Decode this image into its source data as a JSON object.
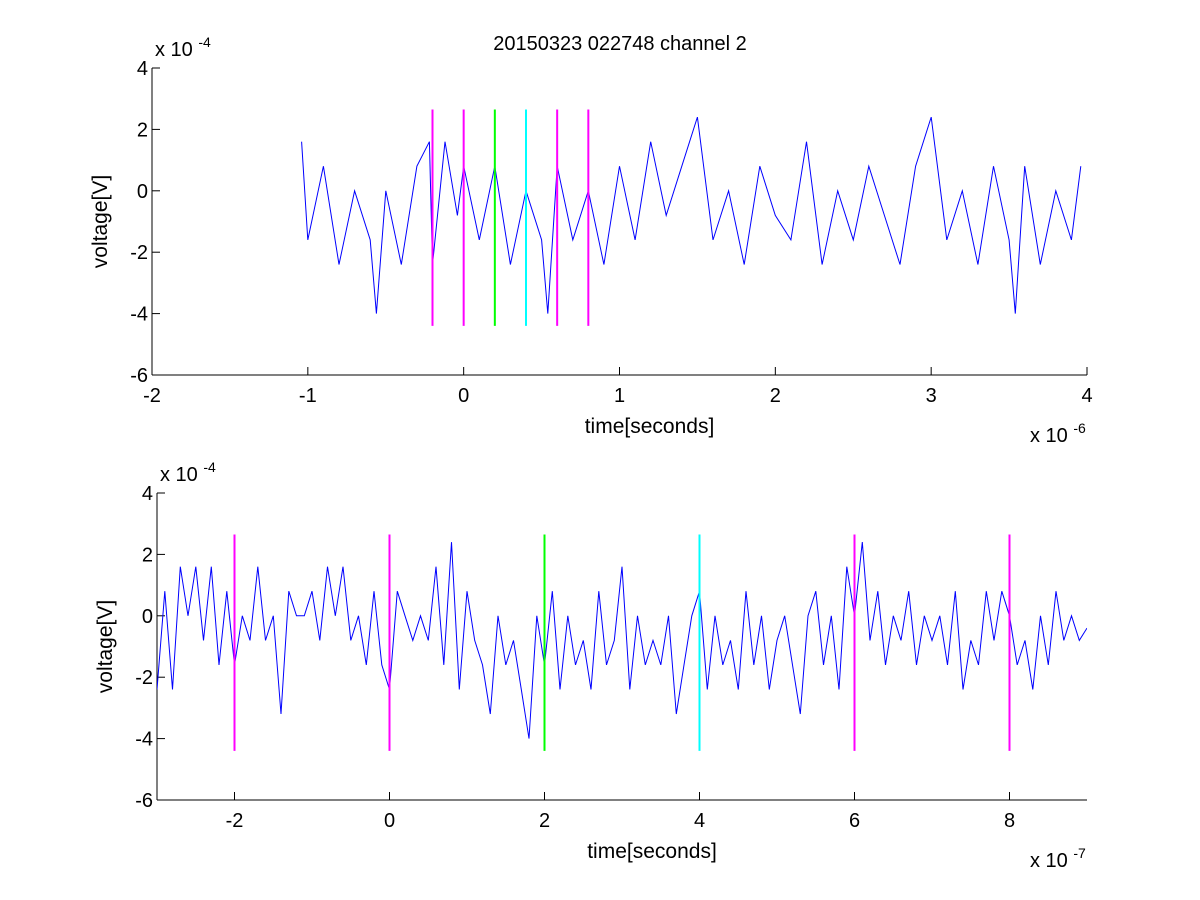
{
  "figure": {
    "title": "20150323 022748 channel 2",
    "background": "#ffffff"
  },
  "colors": {
    "signal": "#0000ff",
    "magenta": "#ff00ff",
    "green": "#00ff00",
    "cyan": "#00ffff",
    "axes": "#000000"
  },
  "chart_data": [
    {
      "type": "line",
      "title": "20150323 022748 channel 2",
      "xlabel": "time[seconds]",
      "ylabel": "voltage[V]",
      "x_exponent_label": "x 10",
      "x_exponent": "-6",
      "y_exponent_label": "x 10",
      "y_exponent": "-4",
      "xlim": [
        -2,
        4
      ],
      "ylim": [
        -6,
        4
      ],
      "xticks": [
        -2,
        -1,
        0,
        1,
        2,
        3,
        4
      ],
      "yticks": [
        -6,
        -4,
        -2,
        0,
        2,
        4
      ],
      "xtick_labels": [
        "-2",
        "-1",
        "0",
        "1",
        "2",
        "3",
        "4"
      ],
      "ytick_labels": [
        "-6",
        "-4",
        "-2",
        "0",
        "2",
        "4"
      ],
      "grid": false,
      "series": [
        {
          "color": "#0000ff",
          "note_x_units": "x in units of 1e-6 s, y in units of 1e-4 V",
          "x": [
            -1.04,
            -1.0,
            -0.9,
            -0.8,
            -0.7,
            -0.6,
            -0.56,
            -0.5,
            -0.4,
            -0.3,
            -0.22,
            -0.2,
            -0.12,
            -0.04,
            0.0,
            0.1,
            0.2,
            0.3,
            0.4,
            0.5,
            0.54,
            0.6,
            0.7,
            0.8,
            0.9,
            1.0,
            1.1,
            1.2,
            1.3,
            1.4,
            1.5,
            1.6,
            1.7,
            1.8,
            1.9,
            2.0,
            2.1,
            2.2,
            2.3,
            2.4,
            2.5,
            2.6,
            2.7,
            2.8,
            2.9,
            3.0,
            3.1,
            3.2,
            3.3,
            3.4,
            3.5,
            3.54,
            3.6,
            3.7,
            3.8,
            3.9,
            3.96
          ],
          "y": [
            1.6,
            -1.6,
            0.8,
            -2.4,
            0.0,
            -1.6,
            -4.0,
            0.0,
            -2.4,
            0.8,
            1.6,
            -2.4,
            1.6,
            -0.8,
            0.8,
            -1.6,
            0.8,
            -2.4,
            0.0,
            -1.6,
            -4.0,
            0.8,
            -1.6,
            0.0,
            -2.4,
            0.8,
            -1.6,
            1.6,
            -0.8,
            0.8,
            2.4,
            -1.6,
            0.0,
            -2.4,
            0.8,
            -0.8,
            -1.6,
            1.6,
            -2.4,
            0.0,
            -1.6,
            0.8,
            -0.8,
            -2.4,
            0.8,
            2.4,
            -1.6,
            0.0,
            -2.4,
            0.8,
            -1.6,
            -4.0,
            0.8,
            -2.4,
            0.0,
            -1.6,
            0.8
          ]
        }
      ],
      "markers": [
        {
          "x": -0.2,
          "color": "#ff00ff"
        },
        {
          "x": 0.0,
          "color": "#ff00ff"
        },
        {
          "x": 0.2,
          "color": "#00ff00"
        },
        {
          "x": 0.4,
          "color": "#00ffff"
        },
        {
          "x": 0.6,
          "color": "#ff00ff"
        },
        {
          "x": 0.8,
          "color": "#ff00ff"
        }
      ],
      "marker_range": [
        -4.4,
        2.65
      ]
    },
    {
      "type": "line",
      "title": "",
      "xlabel": "time[seconds]",
      "ylabel": "voltage[V]",
      "x_exponent_label": "x 10",
      "x_exponent": "-7",
      "y_exponent_label": "x 10",
      "y_exponent": "-4",
      "xlim": [
        -3,
        9
      ],
      "ylim": [
        -6,
        4
      ],
      "xticks": [
        -2,
        0,
        2,
        4,
        6,
        8
      ],
      "yticks": [
        -6,
        -4,
        -2,
        0,
        2,
        4
      ],
      "xtick_labels": [
        "-2",
        "0",
        "2",
        "4",
        "6",
        "8"
      ],
      "ytick_labels": [
        "-6",
        "-4",
        "-2",
        "0",
        "2",
        "4"
      ],
      "grid": false,
      "series": [
        {
          "color": "#0000ff",
          "note_x_units": "x in units of 1e-7 s, y in units of 1e-4 V",
          "x": [
            -3.0,
            -2.9,
            -2.8,
            -2.7,
            -2.6,
            -2.5,
            -2.4,
            -2.3,
            -2.2,
            -2.1,
            -2.0,
            -1.9,
            -1.8,
            -1.7,
            -1.6,
            -1.5,
            -1.4,
            -1.3,
            -1.2,
            -1.1,
            -1.0,
            -0.9,
            -0.8,
            -0.7,
            -0.6,
            -0.5,
            -0.4,
            -0.3,
            -0.2,
            -0.1,
            0.0,
            0.1,
            0.2,
            0.3,
            0.4,
            0.5,
            0.6,
            0.7,
            0.8,
            0.9,
            1.0,
            1.1,
            1.2,
            1.3,
            1.4,
            1.5,
            1.6,
            1.7,
            1.8,
            1.9,
            2.0,
            2.1,
            2.2,
            2.3,
            2.4,
            2.5,
            2.6,
            2.7,
            2.8,
            2.9,
            3.0,
            3.1,
            3.2,
            3.3,
            3.4,
            3.5,
            3.6,
            3.7,
            3.8,
            3.9,
            4.0,
            4.1,
            4.2,
            4.3,
            4.4,
            4.5,
            4.6,
            4.7,
            4.8,
            4.9,
            5.0,
            5.1,
            5.2,
            5.3,
            5.4,
            5.5,
            5.6,
            5.7,
            5.8,
            5.9,
            6.0,
            6.1,
            6.2,
            6.3,
            6.4,
            6.5,
            6.6,
            6.7,
            6.8,
            6.9,
            7.0,
            7.1,
            7.2,
            7.3,
            7.4,
            7.5,
            7.6,
            7.7,
            7.8,
            7.9,
            8.0,
            8.1,
            8.2,
            8.3,
            8.4,
            8.5,
            8.6,
            8.7,
            8.8,
            8.9,
            9.0
          ],
          "y": [
            -2.4,
            0.8,
            -2.4,
            1.6,
            0.0,
            1.6,
            -0.8,
            1.6,
            -1.6,
            0.8,
            -1.6,
            0.0,
            -0.8,
            1.6,
            -0.8,
            0.0,
            -3.2,
            0.8,
            0.0,
            0.0,
            0.8,
            -0.8,
            1.6,
            0.0,
            1.6,
            -0.8,
            0.0,
            -1.6,
            0.8,
            -1.6,
            -2.4,
            0.8,
            0.0,
            -0.8,
            0.0,
            -0.8,
            1.6,
            -1.6,
            2.4,
            -2.4,
            0.8,
            -0.8,
            -1.6,
            -3.2,
            0.0,
            -1.6,
            -0.8,
            -2.4,
            -4.0,
            0.0,
            -1.6,
            0.8,
            -2.4,
            0.0,
            -1.6,
            -0.8,
            -2.4,
            0.8,
            -1.6,
            -0.8,
            1.6,
            -2.4,
            0.0,
            -1.6,
            -0.8,
            -1.6,
            0.0,
            -3.2,
            -1.6,
            0.0,
            0.8,
            -2.4,
            0.0,
            -1.6,
            -0.8,
            -2.4,
            0.8,
            -1.6,
            0.0,
            -2.4,
            -0.8,
            0.0,
            -1.6,
            -3.2,
            0.0,
            0.8,
            -1.6,
            0.0,
            -2.4,
            1.6,
            0.0,
            2.4,
            -0.8,
            0.8,
            -1.6,
            0.0,
            -0.8,
            0.8,
            -1.6,
            0.0,
            -0.8,
            0.0,
            -1.6,
            0.8,
            -2.4,
            -0.8,
            -1.6,
            0.8,
            -0.8,
            0.8,
            0.0,
            -1.6,
            -0.8,
            -2.4,
            0.0,
            -1.6,
            0.8,
            -0.8,
            0.0,
            -0.8,
            -0.4
          ]
        }
      ],
      "markers": [
        {
          "x": -2,
          "color": "#ff00ff"
        },
        {
          "x": 0,
          "color": "#ff00ff"
        },
        {
          "x": 2,
          "color": "#00ff00"
        },
        {
          "x": 4,
          "color": "#00ffff"
        },
        {
          "x": 6,
          "color": "#ff00ff"
        },
        {
          "x": 8,
          "color": "#ff00ff"
        }
      ],
      "marker_range": [
        -4.4,
        2.65
      ]
    }
  ]
}
